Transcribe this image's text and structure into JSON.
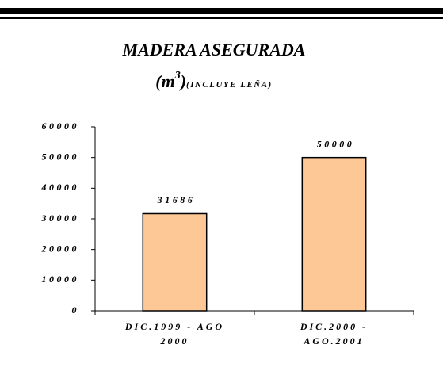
{
  "chart_data": {
    "type": "bar",
    "title": "MADERA ASEGURADA",
    "subtitle_parts": [
      "(m",
      "3",
      ")",
      "(INCLUYE LEÑA)"
    ],
    "categories": [
      "DIC.1999 - AGO\n2000",
      "DIC.2000 -\nAGO.2001"
    ],
    "values": [
      31686,
      50000
    ],
    "color": "#fdc896",
    "ylim": [
      0,
      60000
    ],
    "yticks": [
      0,
      10000,
      20000,
      30000,
      40000,
      50000,
      60000
    ]
  }
}
